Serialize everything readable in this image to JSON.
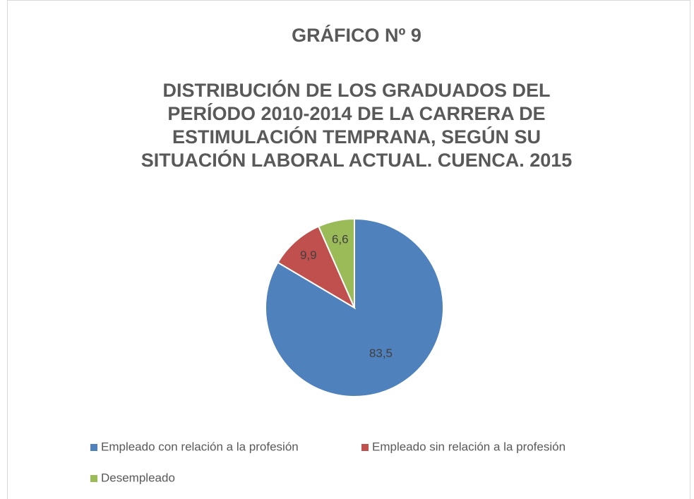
{
  "chart_data": {
    "type": "pie",
    "title": "GRÁFICO Nº 9",
    "subtitle": [
      "DISTRIBUCIÓN DE LOS GRADUADOS DEL",
      "PERÍODO 2010-2014 DE LA CARRERA DE",
      "ESTIMULACIÓN TEMPRANA, SEGÚN SU",
      "SITUACIÓN LABORAL ACTUAL. CUENCA. 2015"
    ],
    "categories": [
      "Empleado con relación a la profesión",
      "Empleado sin relación a la profesión",
      "Desempleado"
    ],
    "values": [
      83.5,
      9.9,
      6.6
    ],
    "value_labels": [
      "83,5",
      "9,9",
      "6,6"
    ],
    "colors": [
      "#4f81bd",
      "#c0504d",
      "#9bbb59"
    ],
    "legend": "bottom"
  }
}
